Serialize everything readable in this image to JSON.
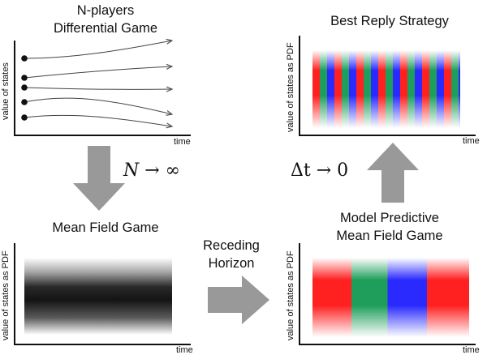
{
  "panels": {
    "nplayers": {
      "title_line1": "N-players",
      "title_line2": "Differential Game",
      "ylabel": "value of states",
      "xlabel": "time"
    },
    "best_reply": {
      "title": "Best Reply Strategy",
      "ylabel": "value of states as PDF",
      "xlabel": "time"
    },
    "mean_field": {
      "title": "Mean Field Game",
      "ylabel": "value of states as PDF",
      "xlabel": "time"
    },
    "mpc_mfg": {
      "title_line1": "Model Predictive",
      "title_line2": "Mean Field Game",
      "ylabel": "value of states as PDF",
      "xlabel": "time"
    }
  },
  "transitions": {
    "limit_n": {
      "var": "N",
      "rest": " → ∞"
    },
    "limit_dt": {
      "var": "Δt",
      "rest": " → 0"
    },
    "receding_line1": "Receding",
    "receding_line2": "Horizon"
  },
  "colors": {
    "arrow_gray": "#999999",
    "red": "#ff2020",
    "green": "#1e9e5a",
    "blue": "#2a2aff"
  }
}
